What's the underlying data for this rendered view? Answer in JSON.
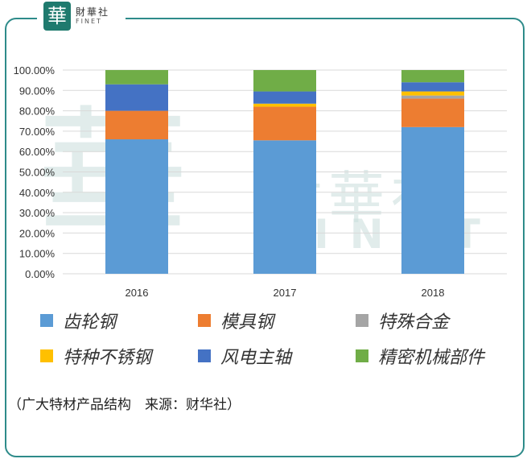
{
  "logo": {
    "mark": "華",
    "name_cn": "財華社",
    "name_en": "FINET"
  },
  "watermark": {
    "mark": "華",
    "name_cn": "財華社",
    "name_en": "FINET"
  },
  "caption": "（广大特材产品结构　来源：财华社）",
  "chart_data": {
    "type": "bar",
    "stacked": true,
    "categories": [
      "2016",
      "2017",
      "2018"
    ],
    "ylim": [
      0,
      100
    ],
    "yticks": [
      "0.00%",
      "10.00%",
      "20.00%",
      "30.00%",
      "40.00%",
      "50.00%",
      "60.00%",
      "70.00%",
      "80.00%",
      "90.00%",
      "100.00%"
    ],
    "grid": true,
    "legend_position": "bottom",
    "series": [
      {
        "name": "齿轮钢",
        "color": "#5b9bd5",
        "values": [
          66,
          65.5,
          72
        ]
      },
      {
        "name": "模具钢",
        "color": "#ed7d31",
        "values": [
          14,
          16.5,
          14
        ]
      },
      {
        "name": "特殊合金",
        "color": "#a5a5a5",
        "values": [
          0,
          0,
          1.5
        ]
      },
      {
        "name": "特种不锈钢",
        "color": "#ffc000",
        "values": [
          0,
          1.5,
          2
        ]
      },
      {
        "name": "风电主轴",
        "color": "#4472c4",
        "values": [
          13,
          6,
          4.5
        ]
      },
      {
        "name": "精密机械部件",
        "color": "#70ad47",
        "values": [
          7,
          10.5,
          6
        ]
      }
    ]
  }
}
